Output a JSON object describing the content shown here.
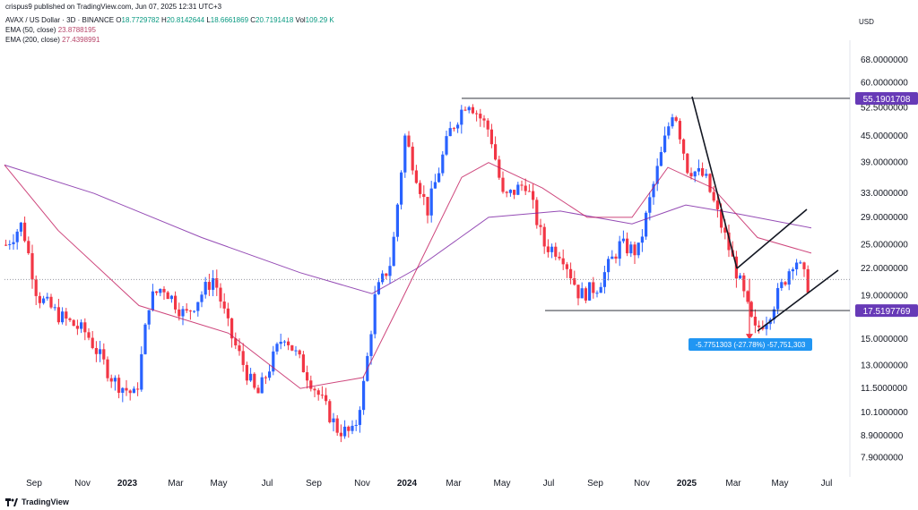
{
  "header": {
    "credit": "crispus9 published on TradingView.com, Jun 07, 2025 12:31 UTC+3",
    "symbol": "AVAX / US Dollar · 3D · BINANCE",
    "o_label": "O",
    "o_value": "18.7729782",
    "h_label": "H",
    "h_value": "20.8142644",
    "l_label": "L",
    "l_value": "18.6661869",
    "c_label": "C",
    "c_value": "20.7191418",
    "vol_label": "Vol",
    "vol_value": "109.29 K",
    "ema50_label": "EMA (50, close)",
    "ema50_value": "23.8788195",
    "ema200_label": "EMA (200, close)",
    "ema200_value": "27.4398991",
    "currency": "USD"
  },
  "logo": {
    "text": "TradingView",
    "icon": "tradingview-logo-icon"
  },
  "colors": {
    "up": "#2962ff",
    "down": "#f23645",
    "ema50": "#c2185b",
    "ema200": "#7b1fa2",
    "badge": "#673ab7",
    "measure": "#2196f3"
  },
  "chart_data": {
    "type": "candlestick",
    "series": [
      {
        "name": "AVAX / US Dollar",
        "close_points": [
          [
            0,
            25
          ],
          [
            18,
            28
          ],
          [
            35,
            19
          ],
          [
            60,
            17
          ],
          [
            90,
            15.5
          ],
          [
            120,
            12
          ],
          [
            145,
            11
          ],
          [
            160,
            18.5
          ],
          [
            175,
            20
          ],
          [
            200,
            17
          ],
          [
            232,
            21
          ],
          [
            250,
            15.5
          ],
          [
            280,
            11
          ],
          [
            310,
            15.5
          ],
          [
            340,
            12
          ],
          [
            370,
            9.2
          ],
          [
            388,
            9
          ],
          [
            400,
            12
          ],
          [
            412,
            19
          ],
          [
            430,
            23
          ],
          [
            445,
            45
          ],
          [
            470,
            30
          ],
          [
            495,
            46
          ],
          [
            515,
            55
          ],
          [
            540,
            46
          ],
          [
            555,
            32
          ],
          [
            580,
            35
          ],
          [
            600,
            25
          ],
          [
            620,
            24
          ],
          [
            640,
            19
          ],
          [
            660,
            20
          ],
          [
            685,
            25
          ],
          [
            705,
            24
          ],
          [
            720,
            33
          ],
          [
            735,
            44
          ],
          [
            745,
            53
          ],
          [
            760,
            38
          ],
          [
            780,
            36
          ],
          [
            800,
            27
          ],
          [
            820,
            20
          ],
          [
            835,
            15.6
          ],
          [
            850,
            17
          ],
          [
            870,
            21
          ],
          [
            880,
            23.5
          ],
          [
            895,
            20
          ]
        ]
      },
      {
        "name": "EMA (50, close)",
        "points": [
          [
            0,
            38.5
          ],
          [
            60,
            27
          ],
          [
            150,
            18
          ],
          [
            250,
            15.5
          ],
          [
            330,
            11.5
          ],
          [
            400,
            12.2
          ],
          [
            440,
            18
          ],
          [
            510,
            36
          ],
          [
            540,
            39
          ],
          [
            600,
            34
          ],
          [
            650,
            29
          ],
          [
            700,
            29
          ],
          [
            740,
            38
          ],
          [
            790,
            34
          ],
          [
            840,
            26
          ],
          [
            900,
            23.9
          ]
        ]
      },
      {
        "name": "EMA (200, close)",
        "points": [
          [
            0,
            38.5
          ],
          [
            100,
            33
          ],
          [
            220,
            26
          ],
          [
            330,
            21.5
          ],
          [
            410,
            19.2
          ],
          [
            460,
            22
          ],
          [
            540,
            29
          ],
          [
            620,
            30
          ],
          [
            700,
            28
          ],
          [
            760,
            31
          ],
          [
            820,
            29.5
          ],
          [
            900,
            27.4
          ]
        ]
      }
    ],
    "x_ticks": [
      "Sep",
      "Nov",
      "2023",
      "Mar",
      "May",
      "Jul",
      "Sep",
      "Nov",
      "2024",
      "Mar",
      "May",
      "Jul",
      "Sep",
      "Nov",
      "2025",
      "Mar",
      "May",
      "Jul"
    ],
    "y_ticks": [
      "68.0000000",
      "60.0000000",
      "52.5000000",
      "45.0000000",
      "39.0000000",
      "33.0000000",
      "29.0000000",
      "25.0000000",
      "22.0000000",
      "19.0000000",
      "15.0000000",
      "13.0000000",
      "11.5000000",
      "10.1000000",
      "8.9000000",
      "7.9000000"
    ],
    "y_tick_values": [
      68,
      60,
      52.5,
      45,
      39,
      33,
      29,
      25,
      22,
      19,
      15,
      13,
      11.5,
      10.1,
      8.9,
      7.9
    ],
    "ylim": [
      7.3,
      72
    ],
    "log_scale": true,
    "current_price": 20.7191418,
    "levels": [
      {
        "label": "55.1901708",
        "value": 55.1901708
      },
      {
        "label": "17.5197769",
        "value": 17.5197769
      }
    ],
    "measure": {
      "label": "-5.7751303 (-27.78%) -57,751,303",
      "from": 20.8,
      "to": 15
    }
  }
}
